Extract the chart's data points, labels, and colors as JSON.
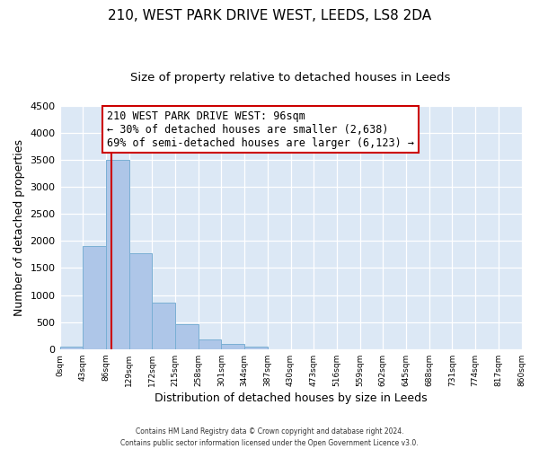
{
  "title": "210, WEST PARK DRIVE WEST, LEEDS, LS8 2DA",
  "subtitle": "Size of property relative to detached houses in Leeds",
  "xlabel": "Distribution of detached houses by size in Leeds",
  "ylabel": "Number of detached properties",
  "bar_values": [
    50,
    1900,
    3500,
    1780,
    860,
    460,
    175,
    90,
    50,
    0,
    0,
    0,
    0,
    0,
    0,
    0,
    0,
    0,
    0,
    0
  ],
  "bin_edges": [
    0,
    43,
    86,
    129,
    172,
    215,
    258,
    301,
    344,
    387,
    430,
    473,
    516,
    559,
    602,
    645,
    688,
    731,
    774,
    817,
    860
  ],
  "tick_labels": [
    "0sqm",
    "43sqm",
    "86sqm",
    "129sqm",
    "172sqm",
    "215sqm",
    "258sqm",
    "301sqm",
    "344sqm",
    "387sqm",
    "430sqm",
    "473sqm",
    "516sqm",
    "559sqm",
    "602sqm",
    "645sqm",
    "688sqm",
    "731sqm",
    "774sqm",
    "817sqm",
    "860sqm"
  ],
  "bar_color": "#aec6e8",
  "bar_edge_color": "#7aafd4",
  "property_line_x": 96,
  "property_line_color": "#cc0000",
  "annotation_title": "210 WEST PARK DRIVE WEST: 96sqm",
  "annotation_line1": "← 30% of detached houses are smaller (2,638)",
  "annotation_line2": "69% of semi-detached houses are larger (6,123) →",
  "annotation_box_color": "#ffffff",
  "annotation_box_edge_color": "#cc0000",
  "ylim": [
    0,
    4500
  ],
  "yticks": [
    0,
    500,
    1000,
    1500,
    2000,
    2500,
    3000,
    3500,
    4000,
    4500
  ],
  "background_color": "#dce8f5",
  "footer_line1": "Contains HM Land Registry data © Crown copyright and database right 2024.",
  "footer_line2": "Contains public sector information licensed under the Open Government Licence v3.0.",
  "title_fontsize": 11,
  "subtitle_fontsize": 9.5,
  "xlabel_fontsize": 9,
  "ylabel_fontsize": 9,
  "annotation_fontsize": 8.5
}
